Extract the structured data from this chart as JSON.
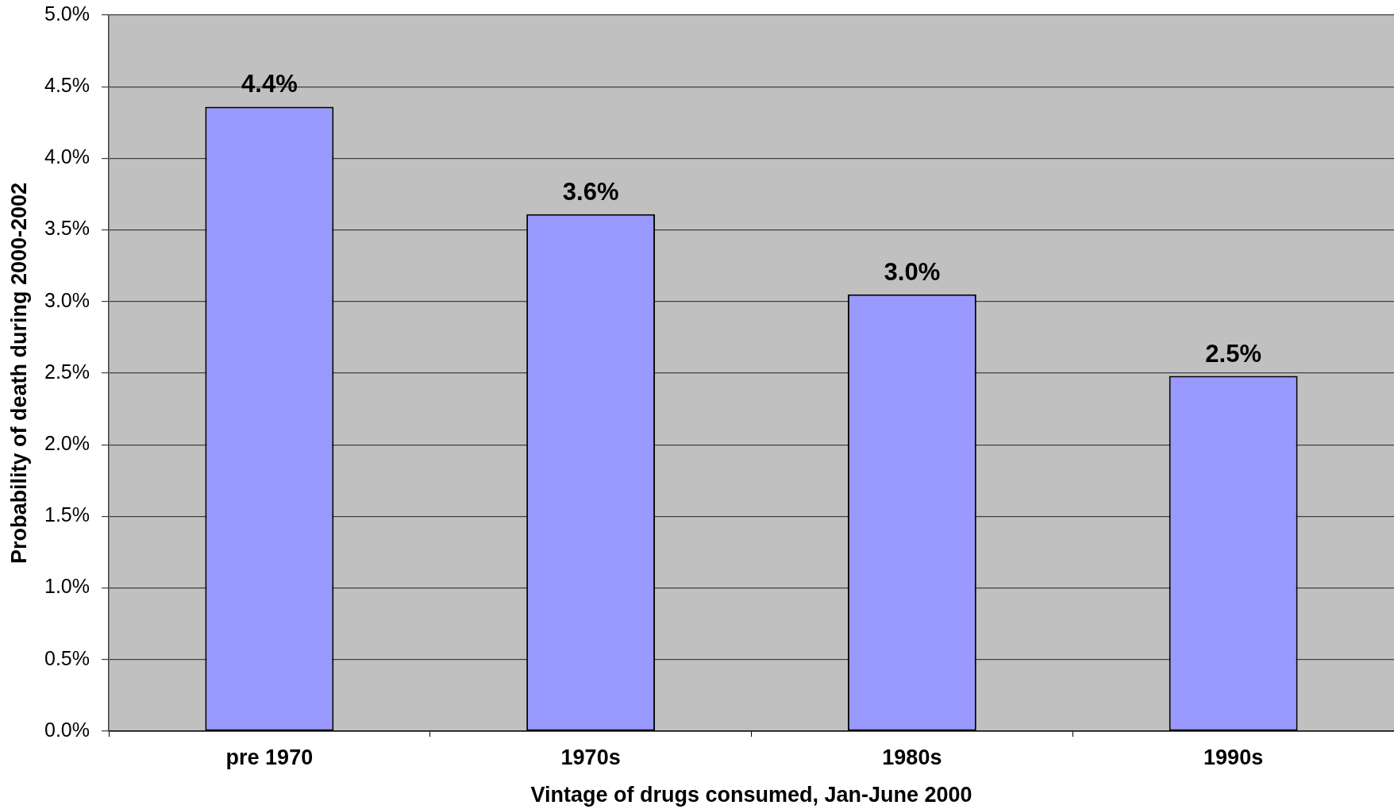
{
  "chart_data": {
    "type": "bar",
    "xlabel": "Vintage of drugs consumed, Jan-June 2000",
    "ylabel": "Probability of death during 2000-2002",
    "categories": [
      "pre 1970",
      "1970s",
      "1980s",
      "1990s"
    ],
    "values": [
      4.36,
      3.61,
      3.05,
      2.48
    ],
    "value_labels": [
      "4.4%",
      "3.6%",
      "3.0%",
      "2.5%"
    ],
    "color": "#9999ff",
    "ylim": [
      0,
      5
    ],
    "yticks": [
      {
        "value": 0,
        "label": "0.0%"
      },
      {
        "value": 0.5,
        "label": "0.5%"
      },
      {
        "value": 1,
        "label": "1.0%"
      },
      {
        "value": 1.5,
        "label": "1.5%"
      },
      {
        "value": 2,
        "label": "2.0%"
      },
      {
        "value": 2.5,
        "label": "2.5%"
      },
      {
        "value": 3,
        "label": "3.0%"
      },
      {
        "value": 3.5,
        "label": "3.5%"
      },
      {
        "value": 4,
        "label": "4.0%"
      },
      {
        "value": 4.5,
        "label": "4.5%"
      },
      {
        "value": 5,
        "label": "5.0%"
      }
    ],
    "grid": "y"
  }
}
